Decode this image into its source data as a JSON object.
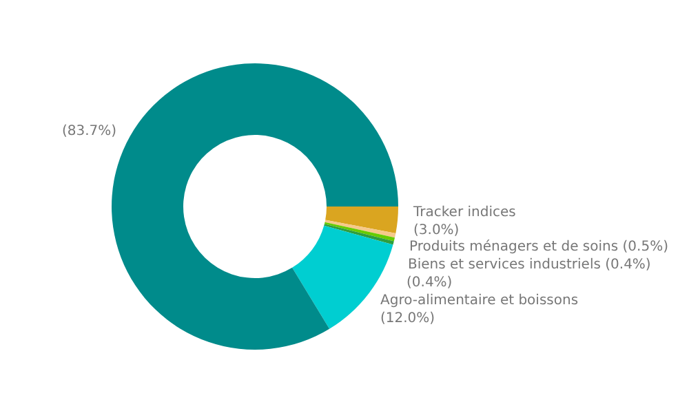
{
  "chart_data": {
    "type": "donut",
    "categories": [
      "Tracker indices",
      "Produits ménagers et de soins",
      "Biens et services industriels",
      null,
      "Agro-alimentaire et boissons",
      null
    ],
    "values": [
      3.0,
      0.5,
      0.4,
      0.4,
      12.0,
      83.7
    ],
    "colors": [
      "#daa520",
      "#f5c98a",
      "#66cc00",
      "#2e9e3e",
      "#00ced1",
      "#008b8b"
    ],
    "value_labels": [
      "(3.0%)",
      "(0.5%)",
      "(0.4%)",
      "(0.4%)",
      "(12.0%)",
      "(83.7%)"
    ],
    "legend": false
  }
}
